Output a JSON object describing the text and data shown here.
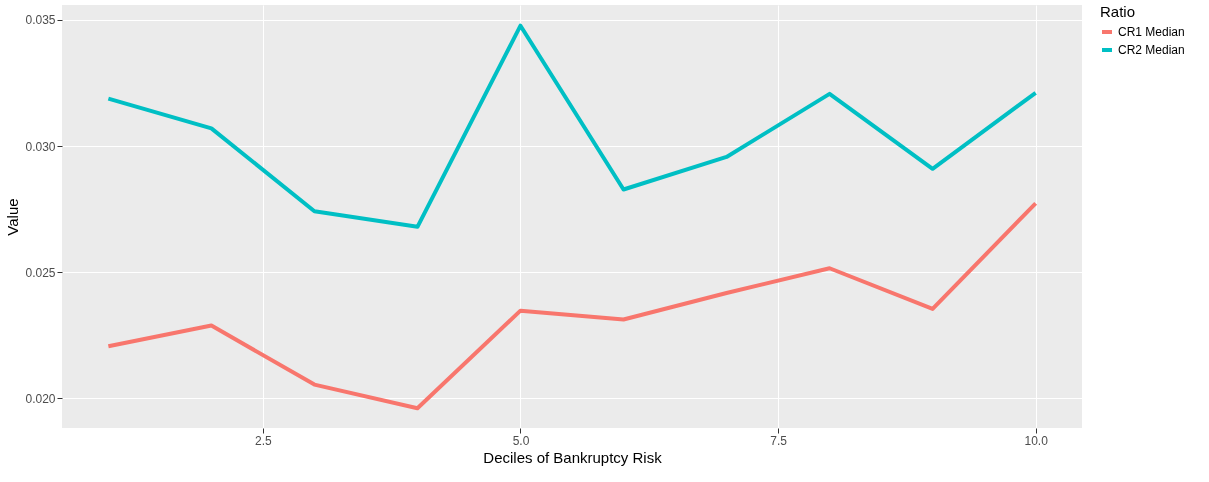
{
  "chart_data": {
    "type": "line",
    "xlabel": "Deciles of Bankruptcy Risk",
    "ylabel": "Value",
    "legend_title": "Ratio",
    "x": [
      1,
      2,
      3,
      4,
      5,
      6,
      7,
      8,
      9,
      10
    ],
    "series": [
      {
        "name": "CR1 Median",
        "color": "#f8766d",
        "values": [
          0.02207,
          0.02289,
          0.02055,
          0.01961,
          0.02348,
          0.02313,
          0.02418,
          0.02516,
          0.02355,
          0.02773
        ]
      },
      {
        "name": "CR2 Median",
        "color": "#00bfc4",
        "values": [
          0.03188,
          0.0307,
          0.02742,
          0.0268,
          0.03477,
          0.02828,
          0.02957,
          0.03207,
          0.0291,
          0.03211
        ]
      }
    ],
    "xlim": [
      0.55,
      10.45
    ],
    "ylim": [
      0.01883,
      0.03559
    ],
    "xticks": [
      {
        "value": 2.5,
        "label": "2.5"
      },
      {
        "value": 5,
        "label": "5.0"
      },
      {
        "value": 7.5,
        "label": "7.5"
      },
      {
        "value": 10,
        "label": "10.0"
      }
    ],
    "yticks": [
      {
        "value": 0.02,
        "label": "0.020"
      },
      {
        "value": 0.025,
        "label": "0.025"
      },
      {
        "value": 0.03,
        "label": "0.030"
      },
      {
        "value": 0.035,
        "label": "0.035"
      }
    ],
    "grid": true,
    "legend": "right",
    "marker": "none",
    "line_style": "solid"
  }
}
